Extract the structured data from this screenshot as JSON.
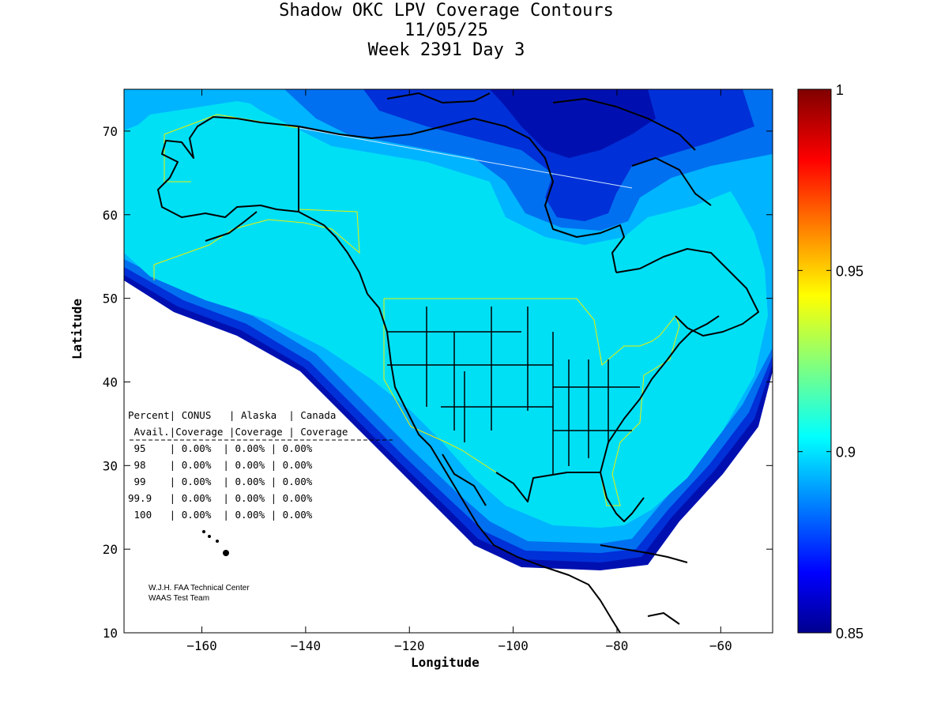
{
  "header": {
    "title_line1": "Shadow OKC LPV Coverage Contours",
    "title_line2": "11/05/25",
    "title_line3": "Week 2391 Day 3"
  },
  "axes": {
    "xlabel": "Longitude",
    "ylabel": "Latitude",
    "xlim": [
      -175,
      -50
    ],
    "ylim": [
      10,
      75
    ],
    "xticks": [
      -160,
      -140,
      -120,
      -100,
      -80,
      -60
    ],
    "yticks": [
      10,
      20,
      30,
      40,
      50,
      60,
      70
    ]
  },
  "colorbar": {
    "min": 0.85,
    "max": 1,
    "ticks": [
      0.85,
      0.9,
      0.95,
      1
    ],
    "tick_labels": [
      "0.85",
      "0.9",
      "0.95",
      "1"
    ],
    "colormap": "jet"
  },
  "stats_table": {
    "header1": "Percent| CONUS   | Alaska  | Canada",
    "header2": " Avail.|Coverage |Coverage | Coverage",
    "rows": [
      " 95    | 0.00%  | 0.00% | 0.00%",
      " 98    | 0.00%  | 0.00% | 0.00%",
      " 99    | 0.00%  | 0.00% | 0.00%",
      "99.9   | 0.00%  | 0.00% | 0.00%",
      " 100   | 0.00%  | 0.00% | 0.00%"
    ]
  },
  "credit": {
    "line1": "W.J.H. FAA Technical Center",
    "line2": "WAAS Test Team"
  },
  "colors": {
    "coverage_main": "#00e0f5",
    "coverage_low1": "#00b4ff",
    "coverage_low2": "#0070f0",
    "coverage_low3": "#0030d8",
    "coverage_low4": "#0010b0",
    "boundary": "#f0f000"
  },
  "chart_data": {
    "type": "heatmap",
    "title": "Shadow OKC LPV Coverage Contours",
    "subtitle": "11/05/25 Week 2391 Day 3",
    "xlabel": "Longitude",
    "ylabel": "Latitude",
    "xlim": [
      -175,
      -50
    ],
    "ylim": [
      10,
      75
    ],
    "colorbar_range": [
      0.85,
      1
    ],
    "description_values": {
      "interior_availability": 0.9,
      "edge_availability_min": 0.85
    }
  }
}
